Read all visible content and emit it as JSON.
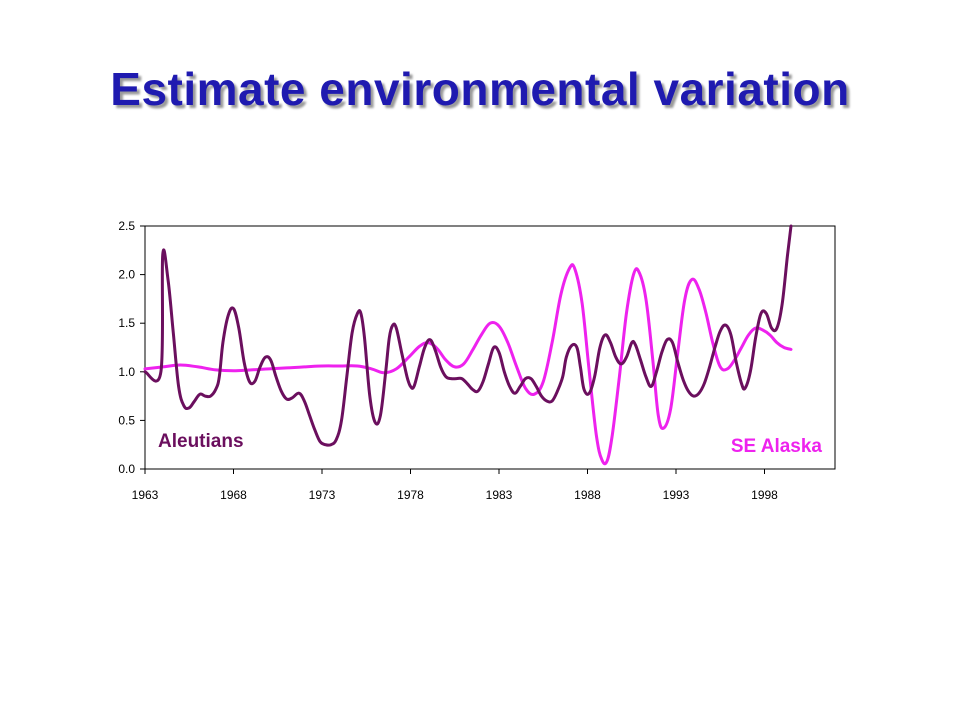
{
  "slide": {
    "title": "Estimate environmental variation"
  },
  "chart_data": {
    "type": "line",
    "title": "",
    "xlabel": "",
    "ylabel": "",
    "xlim": [
      1963,
      2002
    ],
    "ylim": [
      0,
      2.5
    ],
    "x_ticks": [
      "1963",
      "1968",
      "1973",
      "1978",
      "1983",
      "1988",
      "1993",
      "1998"
    ],
    "y_ticks": [
      "0.0",
      "0.5",
      "1.0",
      "1.5",
      "2.0",
      "2.5"
    ],
    "grid": false,
    "series": [
      {
        "name": "Aleutians",
        "color": "#6b0f5e",
        "points": [
          [
            1963.0,
            1.0
          ],
          [
            1963.9,
            1.0
          ],
          [
            1964.0,
            2.2
          ],
          [
            1964.3,
            1.95
          ],
          [
            1964.6,
            1.4
          ],
          [
            1964.9,
            0.85
          ],
          [
            1965.2,
            0.65
          ],
          [
            1965.5,
            0.63
          ],
          [
            1965.8,
            0.7
          ],
          [
            1966.1,
            0.77
          ],
          [
            1966.4,
            0.75
          ],
          [
            1966.7,
            0.75
          ],
          [
            1967.0,
            0.82
          ],
          [
            1967.2,
            0.95
          ],
          [
            1967.4,
            1.3
          ],
          [
            1967.7,
            1.58
          ],
          [
            1968.0,
            1.65
          ],
          [
            1968.3,
            1.45
          ],
          [
            1968.6,
            1.1
          ],
          [
            1968.9,
            0.9
          ],
          [
            1969.2,
            0.9
          ],
          [
            1969.5,
            1.05
          ],
          [
            1969.8,
            1.15
          ],
          [
            1970.1,
            1.12
          ],
          [
            1970.4,
            0.95
          ],
          [
            1970.7,
            0.8
          ],
          [
            1971.0,
            0.72
          ],
          [
            1971.3,
            0.73
          ],
          [
            1971.7,
            0.78
          ],
          [
            1972.0,
            0.7
          ],
          [
            1972.3,
            0.55
          ],
          [
            1972.6,
            0.4
          ],
          [
            1972.9,
            0.28
          ],
          [
            1973.2,
            0.25
          ],
          [
            1973.5,
            0.25
          ],
          [
            1973.8,
            0.3
          ],
          [
            1974.1,
            0.5
          ],
          [
            1974.4,
            0.95
          ],
          [
            1974.7,
            1.4
          ],
          [
            1975.0,
            1.6
          ],
          [
            1975.2,
            1.6
          ],
          [
            1975.4,
            1.35
          ],
          [
            1975.7,
            0.75
          ],
          [
            1976.0,
            0.48
          ],
          [
            1976.3,
            0.55
          ],
          [
            1976.6,
            1.0
          ],
          [
            1976.8,
            1.35
          ],
          [
            1977.0,
            1.48
          ],
          [
            1977.2,
            1.45
          ],
          [
            1977.5,
            1.2
          ],
          [
            1977.8,
            0.95
          ],
          [
            1978.0,
            0.85
          ],
          [
            1978.2,
            0.85
          ],
          [
            1978.5,
            1.05
          ],
          [
            1978.8,
            1.25
          ],
          [
            1979.1,
            1.33
          ],
          [
            1979.4,
            1.22
          ],
          [
            1979.7,
            1.05
          ],
          [
            1980.0,
            0.95
          ],
          [
            1980.3,
            0.93
          ],
          [
            1980.6,
            0.93
          ],
          [
            1980.9,
            0.93
          ],
          [
            1981.2,
            0.88
          ],
          [
            1981.5,
            0.82
          ],
          [
            1981.8,
            0.8
          ],
          [
            1982.1,
            0.9
          ],
          [
            1982.4,
            1.08
          ],
          [
            1982.7,
            1.25
          ],
          [
            1983.0,
            1.2
          ],
          [
            1983.3,
            1.0
          ],
          [
            1983.6,
            0.85
          ],
          [
            1983.9,
            0.78
          ],
          [
            1984.2,
            0.85
          ],
          [
            1984.5,
            0.93
          ],
          [
            1984.8,
            0.93
          ],
          [
            1985.1,
            0.85
          ],
          [
            1985.4,
            0.75
          ],
          [
            1985.7,
            0.7
          ],
          [
            1986.0,
            0.7
          ],
          [
            1986.3,
            0.8
          ],
          [
            1986.6,
            0.95
          ],
          [
            1986.8,
            1.15
          ],
          [
            1987.1,
            1.27
          ],
          [
            1987.4,
            1.25
          ],
          [
            1987.6,
            1.05
          ],
          [
            1987.8,
            0.82
          ],
          [
            1988.1,
            0.78
          ],
          [
            1988.4,
            0.95
          ],
          [
            1988.7,
            1.25
          ],
          [
            1989.0,
            1.38
          ],
          [
            1989.3,
            1.3
          ],
          [
            1989.6,
            1.15
          ],
          [
            1989.9,
            1.08
          ],
          [
            1990.2,
            1.15
          ],
          [
            1990.5,
            1.3
          ],
          [
            1990.7,
            1.28
          ],
          [
            1991.0,
            1.12
          ],
          [
            1991.3,
            0.95
          ],
          [
            1991.6,
            0.85
          ],
          [
            1991.9,
            1.0
          ],
          [
            1992.2,
            1.2
          ],
          [
            1992.5,
            1.33
          ],
          [
            1992.8,
            1.3
          ],
          [
            1993.1,
            1.1
          ],
          [
            1993.4,
            0.92
          ],
          [
            1993.7,
            0.8
          ],
          [
            1994.0,
            0.75
          ],
          [
            1994.3,
            0.78
          ],
          [
            1994.6,
            0.88
          ],
          [
            1994.9,
            1.05
          ],
          [
            1995.2,
            1.25
          ],
          [
            1995.5,
            1.42
          ],
          [
            1995.8,
            1.48
          ],
          [
            1996.1,
            1.38
          ],
          [
            1996.4,
            1.1
          ],
          [
            1996.7,
            0.88
          ],
          [
            1996.9,
            0.83
          ],
          [
            1997.2,
            1.0
          ],
          [
            1997.5,
            1.35
          ],
          [
            1997.8,
            1.6
          ],
          [
            1998.1,
            1.6
          ],
          [
            1998.4,
            1.45
          ],
          [
            1998.7,
            1.45
          ],
          [
            1999.0,
            1.7
          ],
          [
            1999.3,
            2.2
          ],
          [
            1999.5,
            2.5
          ]
        ]
      },
      {
        "name": "SE Alaska",
        "color": "#ee22ee",
        "points": [
          [
            1963.0,
            1.03
          ],
          [
            1964.0,
            1.05
          ],
          [
            1965.0,
            1.07
          ],
          [
            1966.0,
            1.05
          ],
          [
            1967.0,
            1.02
          ],
          [
            1968.0,
            1.01
          ],
          [
            1969.0,
            1.02
          ],
          [
            1970.0,
            1.03
          ],
          [
            1971.0,
            1.04
          ],
          [
            1972.0,
            1.05
          ],
          [
            1973.0,
            1.06
          ],
          [
            1974.0,
            1.06
          ],
          [
            1975.0,
            1.06
          ],
          [
            1975.8,
            1.03
          ],
          [
            1976.5,
            0.99
          ],
          [
            1977.2,
            1.03
          ],
          [
            1977.9,
            1.15
          ],
          [
            1978.5,
            1.26
          ],
          [
            1979.0,
            1.3
          ],
          [
            1979.5,
            1.24
          ],
          [
            1980.0,
            1.12
          ],
          [
            1980.5,
            1.05
          ],
          [
            1981.0,
            1.08
          ],
          [
            1981.5,
            1.22
          ],
          [
            1982.0,
            1.38
          ],
          [
            1982.5,
            1.5
          ],
          [
            1983.0,
            1.47
          ],
          [
            1983.5,
            1.3
          ],
          [
            1984.0,
            1.05
          ],
          [
            1984.5,
            0.83
          ],
          [
            1985.0,
            0.77
          ],
          [
            1985.5,
            0.9
          ],
          [
            1986.0,
            1.3
          ],
          [
            1986.5,
            1.8
          ],
          [
            1987.0,
            2.07
          ],
          [
            1987.3,
            2.05
          ],
          [
            1987.7,
            1.7
          ],
          [
            1988.1,
            1.0
          ],
          [
            1988.5,
            0.35
          ],
          [
            1988.8,
            0.1
          ],
          [
            1989.1,
            0.08
          ],
          [
            1989.4,
            0.35
          ],
          [
            1989.8,
            0.95
          ],
          [
            1990.2,
            1.6
          ],
          [
            1990.6,
            2.0
          ],
          [
            1990.9,
            2.03
          ],
          [
            1991.3,
            1.75
          ],
          [
            1991.7,
            1.1
          ],
          [
            1992.0,
            0.55
          ],
          [
            1992.3,
            0.42
          ],
          [
            1992.7,
            0.62
          ],
          [
            1993.1,
            1.2
          ],
          [
            1993.5,
            1.75
          ],
          [
            1993.9,
            1.95
          ],
          [
            1994.3,
            1.85
          ],
          [
            1994.7,
            1.6
          ],
          [
            1995.1,
            1.28
          ],
          [
            1995.5,
            1.05
          ],
          [
            1995.9,
            1.03
          ],
          [
            1996.3,
            1.12
          ],
          [
            1996.7,
            1.25
          ],
          [
            1997.1,
            1.38
          ],
          [
            1997.5,
            1.45
          ],
          [
            1997.9,
            1.43
          ],
          [
            1998.3,
            1.38
          ],
          [
            1998.7,
            1.3
          ],
          [
            1999.1,
            1.25
          ],
          [
            1999.5,
            1.23
          ]
        ]
      }
    ]
  }
}
